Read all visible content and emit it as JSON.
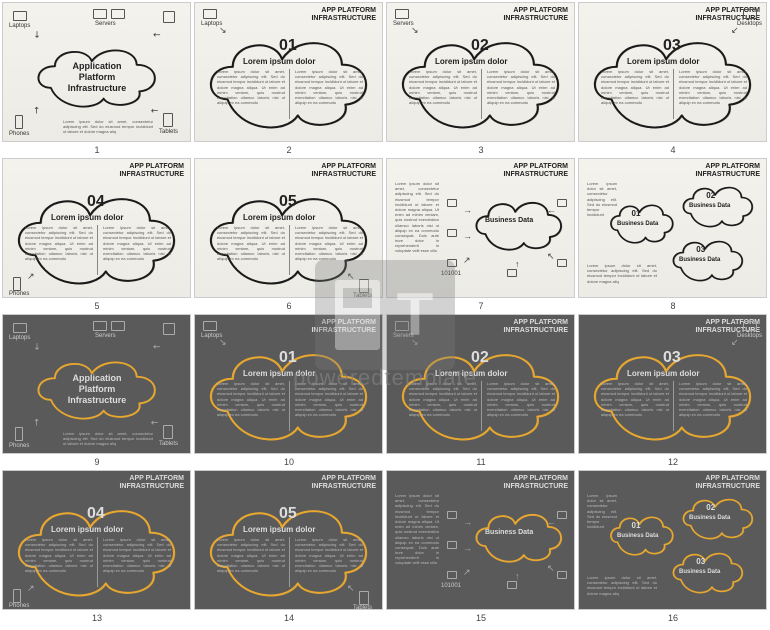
{
  "watermark_text": "poweredtemplate",
  "light_bg": "#f0efe9",
  "dark_bg": "#5a5a5a",
  "light_cloud_stroke": "#1a1a1a",
  "dark_cloud_stroke": "#e8a830",
  "slides": [
    {
      "n": "1",
      "variant": "light",
      "type": "hub",
      "title": "Application\nPlatform\nInfrastructure",
      "labels": {
        "tl": "Laptops",
        "tr": "Servers",
        "tr2": "",
        "bl": "Phones",
        "br": "Tablets"
      },
      "heading": ""
    },
    {
      "n": "2",
      "variant": "light",
      "type": "num",
      "num": "01",
      "title": "Lorem ipsum dolor",
      "heading": "APP PLATFORM\nINFRASTRUCTURE",
      "label_tl": "Laptops"
    },
    {
      "n": "3",
      "variant": "light",
      "type": "num",
      "num": "02",
      "title": "Lorem ipsum dolor",
      "heading": "APP PLATFORM\nINFRASTRUCTURE",
      "label_tl": "Servers"
    },
    {
      "n": "4",
      "variant": "light",
      "type": "num",
      "num": "03",
      "title": "Lorem ipsum dolor",
      "heading": "APP PLATFORM\nINFRASTRUCTURE",
      "label_tr": "Desktops"
    },
    {
      "n": "5",
      "variant": "light",
      "type": "num",
      "num": "04",
      "title": "Lorem ipsum dolor",
      "heading": "APP PLATFORM\nINFRASTRUCTURE",
      "label_bl": "Phones"
    },
    {
      "n": "6",
      "variant": "light",
      "type": "num",
      "num": "05",
      "title": "Lorem ipsum dolor",
      "heading": "APP PLATFORM\nINFRASTRUCTURE",
      "label_br": "Tablets"
    },
    {
      "n": "7",
      "variant": "light",
      "type": "biz",
      "title": "Business Data",
      "heading": "APP PLATFORM\nINFRASTRUCTURE",
      "binary": "101001"
    },
    {
      "n": "8",
      "variant": "light",
      "type": "tri",
      "heading": "APP PLATFORM\nINFRASTRUCTURE",
      "clouds": [
        {
          "n": "01",
          "l": "Business Data"
        },
        {
          "n": "02",
          "l": "Business Data"
        },
        {
          "n": "03",
          "l": "Business Data"
        }
      ]
    },
    {
      "n": "9",
      "variant": "dark",
      "type": "hub",
      "title": "Application\nPlatform\nInfrastructure",
      "labels": {
        "tl": "Laptops",
        "tr": "Servers",
        "bl": "Phones",
        "br": "Tablets"
      },
      "heading": ""
    },
    {
      "n": "10",
      "variant": "dark",
      "type": "num",
      "num": "01",
      "title": "Lorem ipsum dolor",
      "heading": "APP PLATFORM\nINFRASTRUCTURE",
      "label_tl": "Laptops"
    },
    {
      "n": "11",
      "variant": "dark",
      "type": "num",
      "num": "02",
      "title": "Lorem ipsum dolor",
      "heading": "APP PLATFORM\nINFRASTRUCTURE",
      "label_tl": "Servers"
    },
    {
      "n": "12",
      "variant": "dark",
      "type": "num",
      "num": "03",
      "title": "Lorem ipsum dolor",
      "heading": "APP PLATFORM\nINFRASTRUCTURE",
      "label_tr": "Desktops"
    },
    {
      "n": "13",
      "variant": "dark",
      "type": "num",
      "num": "04",
      "title": "Lorem ipsum dolor",
      "heading": "APP PLATFORM\nINFRASTRUCTURE",
      "label_bl": "Phones"
    },
    {
      "n": "14",
      "variant": "dark",
      "type": "num",
      "num": "05",
      "title": "Lorem ipsum dolor",
      "heading": "APP PLATFORM\nINFRASTRUCTURE",
      "label_br": "Tablets"
    },
    {
      "n": "15",
      "variant": "dark",
      "type": "biz",
      "title": "Business Data",
      "heading": "APP PLATFORM\nINFRASTRUCTURE",
      "binary": "101001"
    },
    {
      "n": "16",
      "variant": "dark",
      "type": "tri",
      "heading": "APP PLATFORM\nINFRASTRUCTURE",
      "clouds": [
        {
          "n": "01",
          "l": "Business Data"
        },
        {
          "n": "02",
          "l": "Business Data"
        },
        {
          "n": "03",
          "l": "Business Data"
        }
      ]
    }
  ],
  "lorem_body": "Lorem ipsum dolor sit amet, consectetur adipiscing elit. Sed do eiusmod tempor incididunt ut labore et dolore magna aliqua. Ut enim ad minim veniam, quis nostrud exercitation ullamco laboris nisi ut aliquip ex ea commodo consequat. Duis aute irure dolor in reprehenderit in voluptate velit esse cillum."
}
